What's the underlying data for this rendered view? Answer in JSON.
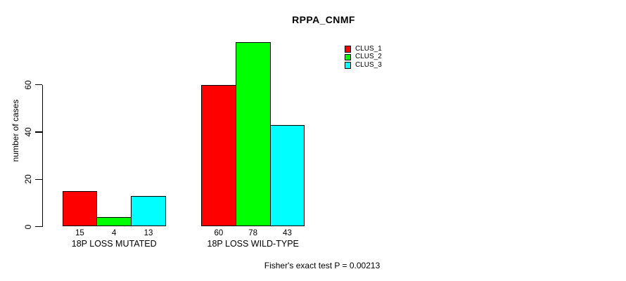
{
  "chart_data": {
    "type": "bar",
    "title": "RPPA_CNMF",
    "xlabel": "",
    "ylabel": "number of cases",
    "categories": [
      "18P LOSS MUTATED",
      "18P LOSS WILD-TYPE"
    ],
    "series": [
      {
        "name": "CLUS_1",
        "color": "#ff0000",
        "values": [
          15,
          60
        ]
      },
      {
        "name": "CLUS_2",
        "color": "#00ff00",
        "values": [
          4,
          78
        ]
      },
      {
        "name": "CLUS_3",
        "color": "#00ffff",
        "values": [
          13,
          43
        ]
      }
    ],
    "yticks": [
      0,
      20,
      40,
      60
    ],
    "ylim": [
      0,
      78
    ],
    "grid": false,
    "legend_position": "top-right",
    "bar_value_labels": true,
    "bar_border_color": "#000000",
    "axis_color": "#000000",
    "annotation": "Fisher's exact test P = 0.00213"
  }
}
